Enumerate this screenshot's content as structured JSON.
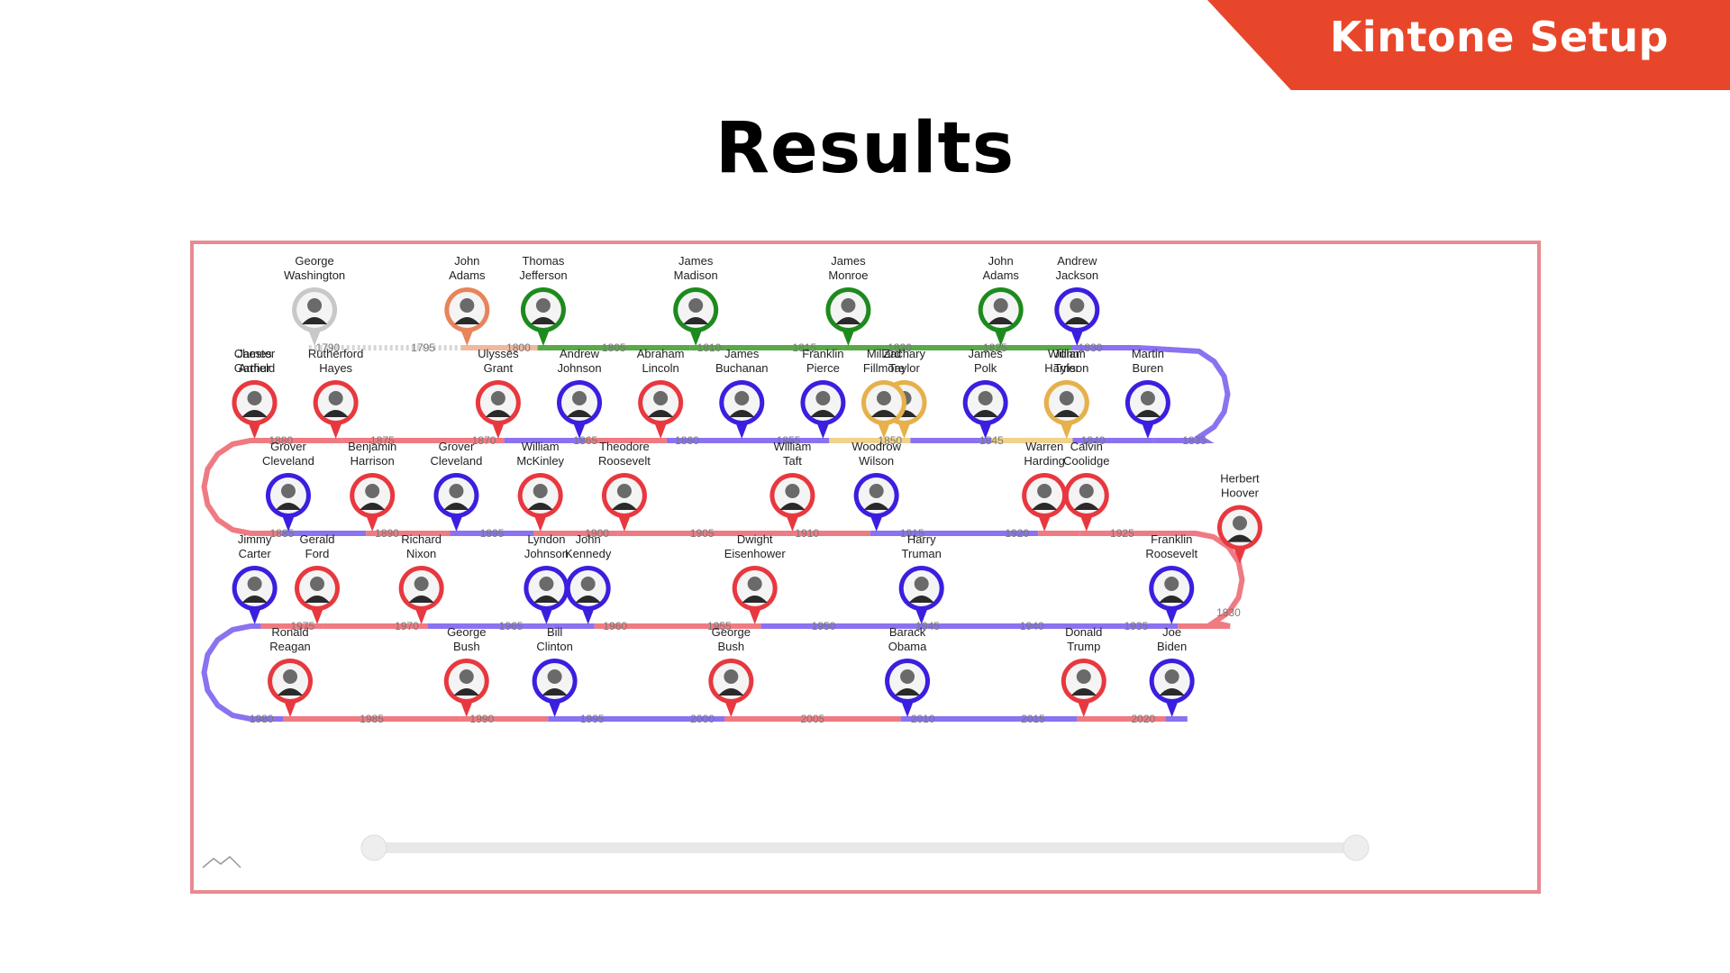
{
  "banner": {
    "text": "Kintone Setup"
  },
  "slide": {
    "title": "Results"
  },
  "colors": {
    "republican": "#e8383f",
    "democrat": "#3a1fe0",
    "democratic_republican": "#1e8a1e",
    "whig": "#e6b04a",
    "federalist": "#e8845a",
    "unaffiliated": "#c8c8c8",
    "track_republican": "#f07a82",
    "track_democrat": "#8a72f0",
    "track_dr": "#5aa84a",
    "track_whig": "#f0d28a",
    "track_federalist": "#f0b8a0",
    "track_none": "#d6d6d6",
    "frame": "#e98a92",
    "banner": "#e8462a"
  },
  "timeline": {
    "year_labels": [
      "1790",
      "1795",
      "1800",
      "1805",
      "1810",
      "1815",
      "1820",
      "1825",
      "1830",
      "1835",
      "1840",
      "1845",
      "1850",
      "1855",
      "1860",
      "1865",
      "1870",
      "1875",
      "1880",
      "1885",
      "1890",
      "1895",
      "1900",
      "1905",
      "1910",
      "1915",
      "1920",
      "1925",
      "1930",
      "1935",
      "1940",
      "1945",
      "1950",
      "1955",
      "1960",
      "1965",
      "1970",
      "1975",
      "1980",
      "1985",
      "1990",
      "1995",
      "2000",
      "2005",
      "2010",
      "2015",
      "2020"
    ],
    "presidents": [
      {
        "first": "George",
        "last": "Washington",
        "start": 1789,
        "end": 1797,
        "party": "unaffiliated"
      },
      {
        "first": "John",
        "last": "Adams",
        "start": 1797,
        "end": 1801,
        "party": "federalist"
      },
      {
        "first": "Thomas",
        "last": "Jefferson",
        "start": 1801,
        "end": 1809,
        "party": "democratic_republican"
      },
      {
        "first": "James",
        "last": "Madison",
        "start": 1809,
        "end": 1817,
        "party": "democratic_republican"
      },
      {
        "first": "James",
        "last": "Monroe",
        "start": 1817,
        "end": 1825,
        "party": "democratic_republican"
      },
      {
        "first": "John",
        "last": "Adams",
        "start": 1825,
        "end": 1829,
        "party": "democratic_republican"
      },
      {
        "first": "Andrew",
        "last": "Jackson",
        "start": 1829,
        "end": 1837,
        "party": "democrat"
      },
      {
        "first": "Martin",
        "last": "Buren",
        "start": 1837,
        "end": 1841,
        "party": "democrat"
      },
      {
        "first": "William",
        "last": "Harrison",
        "start": 1841,
        "end": 1841,
        "party": "whig"
      },
      {
        "first": "John",
        "last": "Tyler",
        "start": 1841,
        "end": 1845,
        "party": "whig"
      },
      {
        "first": "James",
        "last": "Polk",
        "start": 1845,
        "end": 1849,
        "party": "democrat"
      },
      {
        "first": "Zachary",
        "last": "Taylor",
        "start": 1849,
        "end": 1850,
        "party": "whig"
      },
      {
        "first": "Millard",
        "last": "Fillmore",
        "start": 1850,
        "end": 1853,
        "party": "whig"
      },
      {
        "first": "Franklin",
        "last": "Pierce",
        "start": 1853,
        "end": 1857,
        "party": "democrat"
      },
      {
        "first": "James",
        "last": "Buchanan",
        "start": 1857,
        "end": 1861,
        "party": "democrat"
      },
      {
        "first": "Abraham",
        "last": "Lincoln",
        "start": 1861,
        "end": 1865,
        "party": "republican"
      },
      {
        "first": "Andrew",
        "last": "Johnson",
        "start": 1865,
        "end": 1869,
        "party": "democrat"
      },
      {
        "first": "Ulysses",
        "last": "Grant",
        "start": 1869,
        "end": 1877,
        "party": "republican"
      },
      {
        "first": "Rutherford",
        "last": "Hayes",
        "start": 1877,
        "end": 1881,
        "party": "republican"
      },
      {
        "first": "James",
        "last": "Garfield",
        "start": 1881,
        "end": 1881,
        "party": "republican"
      },
      {
        "first": "Chester",
        "last": "Arthur",
        "start": 1881,
        "end": 1885,
        "party": "republican"
      },
      {
        "first": "Grover",
        "last": "Cleveland",
        "start": 1885,
        "end": 1889,
        "party": "democrat"
      },
      {
        "first": "Benjamin",
        "last": "Harrison",
        "start": 1889,
        "end": 1893,
        "party": "republican"
      },
      {
        "first": "Grover",
        "last": "Cleveland",
        "start": 1893,
        "end": 1897,
        "party": "democrat"
      },
      {
        "first": "William",
        "last": "McKinley",
        "start": 1897,
        "end": 1901,
        "party": "republican"
      },
      {
        "first": "Theodore",
        "last": "Roosevelt",
        "start": 1901,
        "end": 1909,
        "party": "republican"
      },
      {
        "first": "William",
        "last": "Taft",
        "start": 1909,
        "end": 1913,
        "party": "republican"
      },
      {
        "first": "Woodrow",
        "last": "Wilson",
        "start": 1913,
        "end": 1921,
        "party": "democrat"
      },
      {
        "first": "Warren",
        "last": "Harding",
        "start": 1921,
        "end": 1923,
        "party": "republican"
      },
      {
        "first": "Calvin",
        "last": "Coolidge",
        "start": 1923,
        "end": 1929,
        "party": "republican"
      },
      {
        "first": "Herbert",
        "last": "Hoover",
        "start": 1929,
        "end": 1933,
        "party": "republican"
      },
      {
        "first": "Franklin",
        "last": "Roosevelt",
        "start": 1933,
        "end": 1945,
        "party": "democrat"
      },
      {
        "first": "Harry",
        "last": "Truman",
        "start": 1945,
        "end": 1953,
        "party": "democrat"
      },
      {
        "first": "Dwight",
        "last": "Eisenhower",
        "start": 1953,
        "end": 1961,
        "party": "republican"
      },
      {
        "first": "John",
        "last": "Kennedy",
        "start": 1961,
        "end": 1963,
        "party": "democrat"
      },
      {
        "first": "Lyndon",
        "last": "Johnson",
        "start": 1963,
        "end": 1969,
        "party": "democrat"
      },
      {
        "first": "Richard",
        "last": "Nixon",
        "start": 1969,
        "end": 1974,
        "party": "republican"
      },
      {
        "first": "Gerald",
        "last": "Ford",
        "start": 1974,
        "end": 1977,
        "party": "republican"
      },
      {
        "first": "Jimmy",
        "last": "Carter",
        "start": 1977,
        "end": 1981,
        "party": "democrat"
      },
      {
        "first": "Ronald",
        "last": "Reagan",
        "start": 1981,
        "end": 1989,
        "party": "republican"
      },
      {
        "first": "George",
        "last": "Bush",
        "start": 1989,
        "end": 1993,
        "party": "republican"
      },
      {
        "first": "Bill",
        "last": "Clinton",
        "start": 1993,
        "end": 2001,
        "party": "democrat"
      },
      {
        "first": "George",
        "last": "Bush",
        "start": 2001,
        "end": 2009,
        "party": "republican"
      },
      {
        "first": "Barack",
        "last": "Obama",
        "start": 2009,
        "end": 2017,
        "party": "democrat"
      },
      {
        "first": "Donald",
        "last": "Trump",
        "start": 2017,
        "end": 2021,
        "party": "republican"
      },
      {
        "first": "Joe",
        "last": "Biden",
        "start": 2021,
        "end": 2022,
        "party": "democrat"
      }
    ],
    "range_slider": {
      "start_fraction": 0,
      "end_fraction": 1
    }
  }
}
